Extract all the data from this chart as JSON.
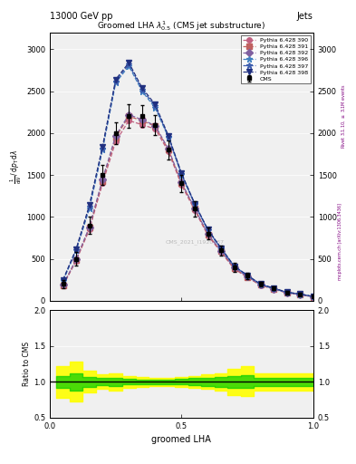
{
  "title": "Groomed LHA $\\lambda^{1}_{0.5}$ (CMS jet substructure)",
  "header_left": "13000 GeV pp",
  "header_right": "Jets",
  "watermark": "CMS_2021_I1920187",
  "xlabel": "groomed LHA",
  "ylabel": "$\\frac{1}{\\mathrm{d}N}\\,/\\,\\mathrm{d}p_{\\mathrm{T}}\\,\\mathrm{d}\\lambda$",
  "ylabel2": "Ratio to CMS",
  "x_values": [
    0.05,
    0.1,
    0.15,
    0.2,
    0.25,
    0.3,
    0.35,
    0.4,
    0.45,
    0.5,
    0.55,
    0.6,
    0.65,
    0.7,
    0.75,
    0.8,
    0.85,
    0.9,
    0.95,
    1.0
  ],
  "cms_y": [
    200,
    500,
    900,
    1500,
    2000,
    2200,
    2200,
    2100,
    1800,
    1400,
    1100,
    800,
    600,
    400,
    300,
    200,
    150,
    100,
    80,
    50
  ],
  "cms_err": [
    50,
    80,
    100,
    120,
    130,
    140,
    130,
    120,
    110,
    100,
    90,
    70,
    60,
    50,
    40,
    30,
    25,
    20,
    15,
    10
  ],
  "series": [
    {
      "label": "Pythia 6.428 390",
      "color": "#c06080",
      "linestyle": "--",
      "marker": "o",
      "markersize": 4,
      "y": [
        180,
        480,
        850,
        1400,
        1900,
        2150,
        2100,
        2050,
        1780,
        1380,
        1080,
        780,
        580,
        380,
        280,
        185,
        140,
        95,
        75,
        45
      ]
    },
    {
      "label": "Pythia 6.428 391",
      "color": "#c06060",
      "linestyle": "--",
      "marker": "s",
      "markersize": 4,
      "y": [
        185,
        490,
        870,
        1430,
        1950,
        2200,
        2150,
        2080,
        1800,
        1400,
        1100,
        790,
        590,
        390,
        285,
        190,
        142,
        97,
        77,
        47
      ]
    },
    {
      "label": "Pythia 6.428 392",
      "color": "#8060a0",
      "linestyle": "--",
      "marker": "D",
      "markersize": 4,
      "y": [
        190,
        495,
        880,
        1450,
        1970,
        2220,
        2160,
        2090,
        1810,
        1410,
        1105,
        795,
        595,
        395,
        288,
        192,
        145,
        98,
        78,
        48
      ]
    },
    {
      "label": "Pythia 6.428 396",
      "color": "#4080c0",
      "linestyle": "--",
      "marker": "*",
      "markersize": 5,
      "y": [
        240,
        600,
        1100,
        1800,
        2600,
        2800,
        2500,
        2300,
        1950,
        1500,
        1150,
        840,
        620,
        410,
        300,
        195,
        148,
        100,
        80,
        50
      ]
    },
    {
      "label": "Pythia 6.428 397",
      "color": "#4060b0",
      "linestyle": "--",
      "marker": "*",
      "markersize": 5,
      "y": [
        245,
        610,
        1120,
        1820,
        2620,
        2820,
        2520,
        2320,
        1960,
        1510,
        1155,
        845,
        625,
        412,
        302,
        197,
        150,
        101,
        81,
        51
      ]
    },
    {
      "label": "Pythia 6.428 398",
      "color": "#203080",
      "linestyle": "--",
      "marker": "v",
      "markersize": 4,
      "y": [
        250,
        620,
        1140,
        1840,
        2640,
        2840,
        2540,
        2340,
        1970,
        1520,
        1160,
        850,
        630,
        415,
        305,
        200,
        152,
        103,
        82,
        52
      ]
    }
  ],
  "ratio_yellow_lo": [
    0.78,
    0.72,
    0.85,
    0.9,
    0.88,
    0.92,
    0.93,
    0.94,
    0.94,
    0.93,
    0.92,
    0.9,
    0.88,
    0.82,
    0.8,
    0.88,
    0.88,
    0.88,
    0.88,
    0.88
  ],
  "ratio_yellow_hi": [
    1.22,
    1.28,
    1.15,
    1.1,
    1.12,
    1.08,
    1.07,
    1.06,
    1.06,
    1.07,
    1.08,
    1.1,
    1.12,
    1.18,
    1.22,
    1.12,
    1.12,
    1.12,
    1.12,
    1.12
  ],
  "ratio_green_lo": [
    0.92,
    0.88,
    0.93,
    0.95,
    0.94,
    0.96,
    0.97,
    0.97,
    0.97,
    0.96,
    0.95,
    0.94,
    0.93,
    0.92,
    0.91,
    0.94,
    0.94,
    0.94,
    0.94,
    0.94
  ],
  "ratio_green_hi": [
    1.08,
    1.12,
    1.07,
    1.05,
    1.06,
    1.04,
    1.03,
    1.03,
    1.03,
    1.04,
    1.05,
    1.06,
    1.07,
    1.08,
    1.09,
    1.06,
    1.06,
    1.06,
    1.06,
    1.06
  ],
  "xlim": [
    0.0,
    1.0
  ],
  "ylim_main": [
    0,
    3200
  ],
  "ylim_ratio": [
    0.5,
    2.0
  ],
  "yticks_main": [
    0,
    500,
    1000,
    1500,
    2000,
    2500,
    3000
  ],
  "yticks_ratio": [
    0.5,
    1.0,
    1.5,
    2.0
  ],
  "xticks": [
    0.0,
    0.5,
    1.0
  ],
  "bg_color": "#f0f0f0"
}
